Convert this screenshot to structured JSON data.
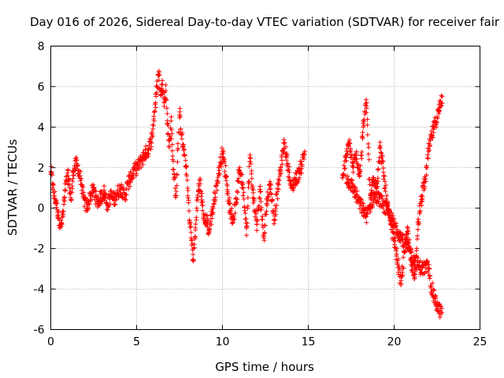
{
  "chart_data": {
    "type": "scatter",
    "title": "Day 016 of 2026, Sidereal Day-to-day VTEC variation (SDTVAR) for receiver fair",
    "xlabel": "GPS time / hours",
    "ylabel": "SDTVAR / TECUs",
    "xlim": [
      0,
      25
    ],
    "ylim": [
      -6,
      8
    ],
    "xticks": [
      0,
      5,
      10,
      15,
      20,
      25
    ],
    "yticks": [
      -6,
      -4,
      -2,
      0,
      2,
      4,
      6,
      8
    ],
    "grid": true,
    "marker": "+",
    "marker_color": "#ff0000",
    "series": [
      {
        "name": "SDTVAR",
        "trace_description": "approximate piecewise trace of the plotted points",
        "x": [
          0.0,
          0.1,
          0.2,
          0.3,
          0.4,
          0.5,
          0.6,
          0.7,
          0.8,
          0.9,
          1.0,
          1.1,
          1.2,
          1.3,
          1.5,
          1.7,
          1.9,
          2.1,
          2.3,
          2.5,
          2.7,
          2.9,
          3.1,
          3.3,
          3.5,
          3.7,
          3.9,
          4.1,
          4.3,
          4.5,
          4.7,
          4.9,
          5.1,
          5.3,
          5.5,
          5.7,
          5.9,
          6.0,
          6.1,
          6.2,
          6.3,
          6.4,
          6.5,
          6.6,
          6.7,
          6.8,
          6.9,
          7.0,
          7.1,
          7.2,
          7.3,
          7.5,
          7.7,
          7.9,
          8.0,
          8.1,
          8.2,
          8.3,
          8.4,
          8.5,
          8.6,
          8.7,
          8.8,
          8.9,
          9.0,
          9.1,
          9.2,
          10.0,
          10.2,
          10.4,
          10.6,
          10.8,
          11.0,
          11.2,
          11.4,
          11.6,
          11.8,
          12.0,
          12.2,
          12.4,
          12.6,
          12.8,
          13.0,
          13.2,
          13.4,
          13.6,
          13.8,
          14.0,
          14.5,
          14.8,
          17.0,
          17.2,
          17.4,
          17.6,
          17.8,
          18.0,
          18.2,
          18.4,
          18.6,
          18.8,
          19.0,
          19.2,
          19.4,
          19.6,
          19.8,
          20.0,
          20.2,
          20.4,
          20.6,
          20.8,
          21.0,
          21.2,
          21.4,
          21.6,
          21.8,
          22.0,
          22.2,
          22.4,
          22.6,
          22.8
        ],
        "y": [
          1.8,
          1.2,
          0.6,
          0.3,
          -0.2,
          -0.6,
          -0.9,
          -0.4,
          0.5,
          1.3,
          1.6,
          1.0,
          0.4,
          1.8,
          2.2,
          1.6,
          0.5,
          0.0,
          0.6,
          0.9,
          0.3,
          0.5,
          0.8,
          0.2,
          0.6,
          0.4,
          0.8,
          1.0,
          0.5,
          1.2,
          1.6,
          1.9,
          2.1,
          2.4,
          2.7,
          2.9,
          3.5,
          4.4,
          5.2,
          6.0,
          6.7,
          5.6,
          6.3,
          5.2,
          5.8,
          4.2,
          3.0,
          4.3,
          2.4,
          1.5,
          0.6,
          4.6,
          3.0,
          2.0,
          0.5,
          -0.7,
          -1.6,
          -2.6,
          -1.4,
          0.0,
          0.9,
          1.2,
          0.4,
          -0.3,
          -0.8,
          -0.5,
          -1.2,
          2.8,
          1.6,
          0.2,
          -0.6,
          0.3,
          2.0,
          1.0,
          -1.0,
          2.5,
          0.5,
          -0.8,
          0.8,
          -1.4,
          0.4,
          1.2,
          -0.6,
          0.8,
          2.0,
          3.2,
          2.2,
          1.0,
          1.8,
          2.8,
          1.5,
          2.5,
          3.2,
          2.0,
          2.6,
          1.6,
          4.0,
          5.2,
          0.5,
          1.5,
          1.2,
          3.0,
          1.6,
          0.2,
          -0.8,
          -1.5,
          -2.6,
          -3.8,
          -2.2,
          -1.0,
          -2.6,
          -3.4,
          -0.8,
          0.6,
          1.3,
          2.8,
          3.6,
          4.2,
          4.8,
          5.5
        ],
        "x2": [
          17.2,
          17.6,
          18.0,
          18.4,
          18.8,
          19.2,
          19.6,
          20.0,
          20.4,
          20.8,
          21.2,
          21.6,
          22.0,
          22.2,
          22.4,
          22.6,
          22.8
        ],
        "y2": [
          1.5,
          1.0,
          0.2,
          -0.4,
          0.6,
          0.4,
          -0.2,
          -0.8,
          -1.4,
          -2.0,
          -2.6,
          -3.0,
          -2.9,
          -4.0,
          -4.6,
          -5.0,
          -5.2
        ]
      }
    ]
  }
}
